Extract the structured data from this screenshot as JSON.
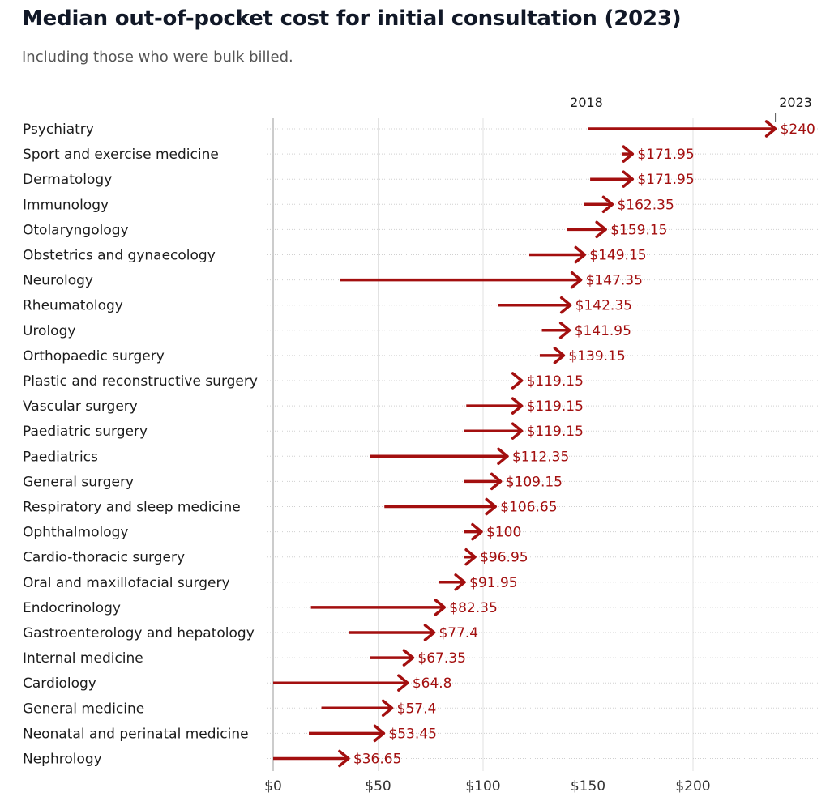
{
  "chart_data": {
    "type": "arrow-dot",
    "title": "Median out-of-pocket cost for initial consultation (2023)",
    "subtitle": "Including those who were bulk billed.",
    "xlim": [
      0,
      240
    ],
    "xticks": [
      0,
      50,
      100,
      150,
      200
    ],
    "xtick_labels": [
      "$0",
      "$50",
      "$100",
      "$150",
      "$200"
    ],
    "start_label": "2018",
    "end_label": "2023",
    "color": "#a30f0f",
    "grid": true,
    "categories": [
      "Psychiatry",
      "Sport and exercise medicine",
      "Dermatology",
      "Immunology",
      "Otolaryngology",
      "Obstetrics and gynaecology",
      "Neurology",
      "Rheumatology",
      "Urology",
      "Orthopaedic surgery",
      "Plastic and reconstructive surgery",
      "Vascular surgery",
      "Paediatric surgery",
      "Paediatrics",
      "General surgery",
      "Respiratory and sleep medicine",
      "Ophthalmology",
      "Cardio-thoracic surgery",
      "Oral and maxillofacial surgery",
      "Endocrinology",
      "Gastroenterology and hepatology",
      "Internal medicine",
      "Cardiology",
      "General medicine",
      "Neonatal and perinatal medicine",
      "Nephrology"
    ],
    "series": [
      {
        "name": "2018",
        "values": [
          150,
          166,
          151,
          148,
          140,
          122,
          32,
          107,
          128,
          127,
          118,
          92,
          91,
          46,
          91,
          53,
          91,
          91,
          79,
          18,
          36,
          46,
          0,
          23,
          17,
          0
        ]
      },
      {
        "name": "2023",
        "values": [
          240,
          171.95,
          171.95,
          162.35,
          159.15,
          149.15,
          147.35,
          142.35,
          141.95,
          139.15,
          119.15,
          119.15,
          119.15,
          112.35,
          109.15,
          106.65,
          100,
          96.95,
          91.95,
          82.35,
          77.4,
          67.35,
          64.8,
          57.4,
          53.45,
          36.65
        ]
      }
    ],
    "value_labels": [
      "$240",
      "$171.95",
      "$171.95",
      "$162.35",
      "$159.15",
      "$149.15",
      "$147.35",
      "$142.35",
      "$141.95",
      "$139.15",
      "$119.15",
      "$119.15",
      "$119.15",
      "$112.35",
      "$109.15",
      "$106.65",
      "$100",
      "$96.95",
      "$91.95",
      "$82.35",
      "$77.4",
      "$67.35",
      "$64.8",
      "$57.4",
      "$53.45",
      "$36.65"
    ]
  }
}
